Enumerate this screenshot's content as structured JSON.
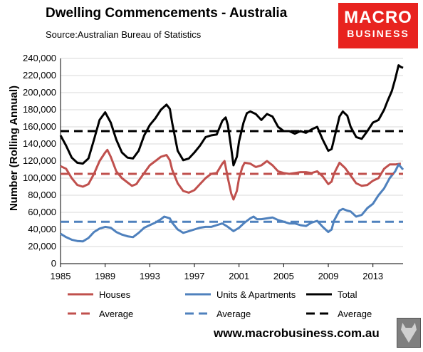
{
  "title": "Dwelling Commencements - Australia",
  "source": "Source:Australian Bureau of Statistics",
  "logo": {
    "line1": "MACRO",
    "line2": "BUSINESS"
  },
  "footer_url": "www.macrobusiness.com.au",
  "colors": {
    "houses": "#c0504d",
    "units": "#4f81bd",
    "total": "#000000"
  },
  "chart_data": {
    "type": "line",
    "title": "",
    "xlabel": "",
    "ylabel": "Number (Rolling Annual)",
    "xlim": [
      1985,
      2015.7
    ],
    "ylim": [
      0,
      240000
    ],
    "xticks": [
      "1985",
      "1989",
      "1993",
      "1997",
      "2001",
      "2005",
      "2009",
      "2013"
    ],
    "yticks": [
      "0",
      "20,000",
      "40,000",
      "60,000",
      "80,000",
      "100,000",
      "120,000",
      "140,000",
      "160,000",
      "180,000",
      "200,000",
      "220,000",
      "240,000"
    ],
    "legend_position": "bottom",
    "series": [
      {
        "name": "Houses",
        "color": "#c0504d",
        "style": "solid",
        "points": [
          [
            1985,
            114000
          ],
          [
            1985.5,
            111000
          ],
          [
            1986,
            100000
          ],
          [
            1986.5,
            92000
          ],
          [
            1987,
            90000
          ],
          [
            1987.5,
            93000
          ],
          [
            1988,
            105000
          ],
          [
            1988.5,
            120000
          ],
          [
            1989,
            130000
          ],
          [
            1989.2,
            133000
          ],
          [
            1989.5,
            125000
          ],
          [
            1990,
            108000
          ],
          [
            1990.5,
            100000
          ],
          [
            1991,
            95000
          ],
          [
            1991.4,
            91000
          ],
          [
            1991.8,
            93000
          ],
          [
            1992,
            97000
          ],
          [
            1992.5,
            106000
          ],
          [
            1993,
            115000
          ],
          [
            1993.5,
            120000
          ],
          [
            1994,
            125000
          ],
          [
            1994.5,
            127000
          ],
          [
            1994.8,
            121000
          ],
          [
            1995,
            110000
          ],
          [
            1995.5,
            94000
          ],
          [
            1996,
            85000
          ],
          [
            1996.5,
            83000
          ],
          [
            1997,
            86000
          ],
          [
            1997.5,
            93000
          ],
          [
            1998,
            100000
          ],
          [
            1998.5,
            105000
          ],
          [
            1999,
            106000
          ],
          [
            1999.5,
            117000
          ],
          [
            1999.7,
            120000
          ],
          [
            2000,
            100000
          ],
          [
            2000.3,
            82000
          ],
          [
            2000.5,
            75000
          ],
          [
            2000.8,
            85000
          ],
          [
            2001,
            100000
          ],
          [
            2001.3,
            113000
          ],
          [
            2001.5,
            118000
          ],
          [
            2002,
            117000
          ],
          [
            2002.5,
            113000
          ],
          [
            2003,
            115000
          ],
          [
            2003.5,
            120000
          ],
          [
            2004,
            115000
          ],
          [
            2004.5,
            108000
          ],
          [
            2005,
            106000
          ],
          [
            2005.5,
            105000
          ],
          [
            2006,
            106000
          ],
          [
            2006.5,
            107000
          ],
          [
            2007,
            107000
          ],
          [
            2007.5,
            106000
          ],
          [
            2008,
            108000
          ],
          [
            2008.5,
            102000
          ],
          [
            2009,
            93000
          ],
          [
            2009.3,
            96000
          ],
          [
            2009.5,
            105000
          ],
          [
            2010,
            118000
          ],
          [
            2010.5,
            112000
          ],
          [
            2011,
            103000
          ],
          [
            2011.5,
            94000
          ],
          [
            2012,
            91000
          ],
          [
            2012.5,
            92000
          ],
          [
            2013,
            97000
          ],
          [
            2013.5,
            100000
          ],
          [
            2014,
            111000
          ],
          [
            2014.5,
            116000
          ],
          [
            2015,
            116000
          ],
          [
            2015.5,
            117000
          ]
        ]
      },
      {
        "name": "Units & Apartments",
        "color": "#4f81bd",
        "style": "solid",
        "points": [
          [
            1985,
            35000
          ],
          [
            1985.5,
            31000
          ],
          [
            1986,
            28000
          ],
          [
            1986.5,
            26500
          ],
          [
            1987,
            26000
          ],
          [
            1987.5,
            30000
          ],
          [
            1988,
            37000
          ],
          [
            1988.5,
            41000
          ],
          [
            1989,
            43000
          ],
          [
            1989.5,
            42000
          ],
          [
            1990,
            37000
          ],
          [
            1990.5,
            34000
          ],
          [
            1991,
            32000
          ],
          [
            1991.5,
            31000
          ],
          [
            1992,
            36000
          ],
          [
            1992.5,
            42000
          ],
          [
            1993,
            45000
          ],
          [
            1993.5,
            48000
          ],
          [
            1994,
            52000
          ],
          [
            1994.3,
            55000
          ],
          [
            1994.8,
            53000
          ],
          [
            1995,
            48000
          ],
          [
            1995.5,
            40000
          ],
          [
            1996,
            36000
          ],
          [
            1996.5,
            38000
          ],
          [
            1997,
            40000
          ],
          [
            1997.5,
            42000
          ],
          [
            1998,
            43000
          ],
          [
            1998.5,
            43000
          ],
          [
            1999,
            45000
          ],
          [
            1999.5,
            47000
          ],
          [
            2000,
            43000
          ],
          [
            2000.5,
            38000
          ],
          [
            2001,
            42000
          ],
          [
            2001.5,
            48000
          ],
          [
            2002,
            53000
          ],
          [
            2002.3,
            55000
          ],
          [
            2002.6,
            52000
          ],
          [
            2003,
            52000
          ],
          [
            2003.5,
            53000
          ],
          [
            2004,
            54000
          ],
          [
            2004.5,
            51000
          ],
          [
            2005,
            49000
          ],
          [
            2005.5,
            47000
          ],
          [
            2006,
            47000
          ],
          [
            2006.5,
            45000
          ],
          [
            2007,
            44000
          ],
          [
            2007.5,
            48000
          ],
          [
            2008,
            50000
          ],
          [
            2008.5,
            43000
          ],
          [
            2009,
            37000
          ],
          [
            2009.3,
            40000
          ],
          [
            2009.5,
            50000
          ],
          [
            2010,
            62000
          ],
          [
            2010.3,
            64000
          ],
          [
            2010.7,
            62000
          ],
          [
            2011,
            61000
          ],
          [
            2011.5,
            55000
          ],
          [
            2012,
            57000
          ],
          [
            2012.5,
            65000
          ],
          [
            2013,
            70000
          ],
          [
            2013.5,
            80000
          ],
          [
            2014,
            88000
          ],
          [
            2014.5,
            100000
          ],
          [
            2015,
            108000
          ],
          [
            2015.3,
            116000
          ],
          [
            2015.5,
            113000
          ],
          [
            2015.7,
            110000
          ]
        ]
      },
      {
        "name": "Total",
        "color": "#000000",
        "style": "solid",
        "points": [
          [
            1985,
            150000
          ],
          [
            1985.5,
            138000
          ],
          [
            1986,
            124000
          ],
          [
            1986.5,
            118000
          ],
          [
            1987,
            117000
          ],
          [
            1987.5,
            123000
          ],
          [
            1988,
            145000
          ],
          [
            1988.5,
            168000
          ],
          [
            1989,
            177000
          ],
          [
            1989.5,
            165000
          ],
          [
            1990,
            145000
          ],
          [
            1990.5,
            130000
          ],
          [
            1991,
            124000
          ],
          [
            1991.5,
            123000
          ],
          [
            1992,
            132000
          ],
          [
            1992.5,
            150000
          ],
          [
            1993,
            162000
          ],
          [
            1993.5,
            170000
          ],
          [
            1994,
            180000
          ],
          [
            1994.5,
            186000
          ],
          [
            1994.8,
            181000
          ],
          [
            1995,
            165000
          ],
          [
            1995.5,
            132000
          ],
          [
            1996,
            121000
          ],
          [
            1996.5,
            123000
          ],
          [
            1997,
            130000
          ],
          [
            1997.5,
            138000
          ],
          [
            1998,
            148000
          ],
          [
            1998.5,
            150000
          ],
          [
            1999,
            151000
          ],
          [
            1999.5,
            167000
          ],
          [
            1999.8,
            171000
          ],
          [
            2000,
            162000
          ],
          [
            2000.3,
            135000
          ],
          [
            2000.5,
            115000
          ],
          [
            2000.8,
            125000
          ],
          [
            2001,
            143000
          ],
          [
            2001.4,
            165000
          ],
          [
            2001.7,
            176000
          ],
          [
            2002,
            178000
          ],
          [
            2002.5,
            175000
          ],
          [
            2003,
            168000
          ],
          [
            2003.5,
            175000
          ],
          [
            2004,
            172000
          ],
          [
            2004.5,
            160000
          ],
          [
            2005,
            155000
          ],
          [
            2005.5,
            155000
          ],
          [
            2006,
            152000
          ],
          [
            2006.5,
            155000
          ],
          [
            2007,
            153000
          ],
          [
            2007.5,
            157000
          ],
          [
            2008,
            160000
          ],
          [
            2008.5,
            145000
          ],
          [
            2009,
            132000
          ],
          [
            2009.3,
            134000
          ],
          [
            2009.5,
            145000
          ],
          [
            2010,
            172000
          ],
          [
            2010.3,
            178000
          ],
          [
            2010.7,
            173000
          ],
          [
            2011,
            160000
          ],
          [
            2011.5,
            148000
          ],
          [
            2012,
            146000
          ],
          [
            2012.5,
            155000
          ],
          [
            2013,
            165000
          ],
          [
            2013.5,
            168000
          ],
          [
            2014,
            180000
          ],
          [
            2014.3,
            190000
          ],
          [
            2014.7,
            202000
          ],
          [
            2015,
            216000
          ],
          [
            2015.3,
            232000
          ],
          [
            2015.5,
            230000
          ],
          [
            2015.7,
            229000
          ]
        ]
      },
      {
        "name": "Average",
        "color": "#c0504d",
        "style": "dashed",
        "points": [
          [
            1985,
            105000
          ],
          [
            2015.7,
            105000
          ]
        ]
      },
      {
        "name": "Average",
        "color": "#4f81bd",
        "style": "dashed",
        "points": [
          [
            1985,
            49000
          ],
          [
            2015.7,
            49000
          ]
        ]
      },
      {
        "name": "Average",
        "color": "#000000",
        "style": "dashed",
        "points": [
          [
            1985,
            155000
          ],
          [
            2015.7,
            155000
          ]
        ]
      }
    ]
  }
}
